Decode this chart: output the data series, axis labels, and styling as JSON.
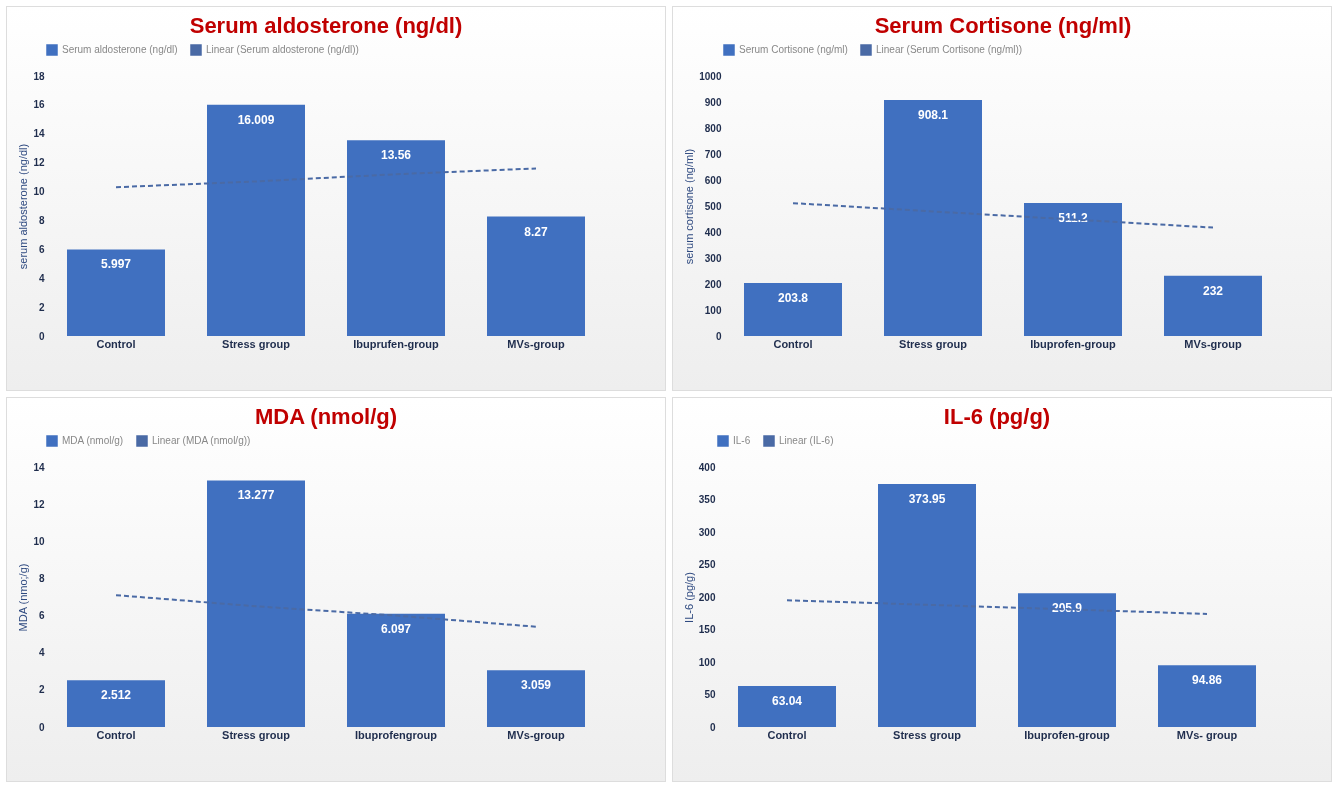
{
  "chart_data": [
    {
      "type": "bar",
      "title": "Serum aldosterone (ng/dl)",
      "ylabel": "serum aldosterone (ng/dl)",
      "categories": [
        "Control",
        "Stress group",
        "Ibuprufen-group",
        "MVs-group"
      ],
      "ylim": [
        0,
        18
      ],
      "yticks": [
        0,
        2,
        4,
        6,
        8,
        10,
        12,
        14,
        16,
        18
      ],
      "legend": "top",
      "series": [
        {
          "name": "Serum aldosterone (ng/dl)",
          "color": "#4070c0",
          "values": [
            5.997,
            16.009,
            13.56,
            8.27
          ],
          "value_labels": [
            "5.997",
            "16.009",
            "13.56",
            "8.27"
          ]
        },
        {
          "name": "Linear (Serum aldosterone (ng/dl))",
          "type": "line",
          "line_style": "dashed",
          "color": "#4a6aa5",
          "values": [
            10.3,
            10.7,
            11.2,
            11.6
          ]
        }
      ]
    },
    {
      "type": "bar",
      "title": "Serum Cortisone (ng/ml)",
      "ylabel": "serum cortisone (ng/ml)",
      "categories": [
        "Control",
        "Stress group",
        "Ibuprofen-group",
        "MVs-group"
      ],
      "ylim": [
        0,
        1000
      ],
      "yticks": [
        0,
        100,
        200,
        300,
        400,
        500,
        600,
        700,
        800,
        900,
        1000
      ],
      "legend": "top",
      "series": [
        {
          "name": "Serum Cortisone (ng/ml)",
          "color": "#4070c0",
          "values": [
            203.8,
            908.1,
            511.2,
            232
          ],
          "value_labels": [
            "203.8",
            "908.1",
            "511.2",
            "232"
          ]
        },
        {
          "name": "Linear (Serum Cortisone (ng/ml))",
          "type": "line",
          "line_style": "dashed",
          "color": "#4a6aa5",
          "values": [
            511,
            479,
            448,
            417
          ]
        }
      ]
    },
    {
      "type": "bar",
      "title": "MDA (nmol/g)",
      "ylabel": "MDA (nmo;/g)",
      "categories": [
        "Control",
        "Stress group",
        "Ibuprofengroup",
        "MVs-group"
      ],
      "ylim": [
        0,
        14
      ],
      "yticks": [
        0,
        2,
        4,
        6,
        8,
        10,
        12,
        14
      ],
      "legend": "top",
      "series": [
        {
          "name": "MDA (nmol/g)",
          "color": "#4070c0",
          "values": [
            2.512,
            13.277,
            6.097,
            3.059
          ],
          "value_labels": [
            "2.512",
            "13.277",
            "6.097",
            "3.059"
          ]
        },
        {
          "name": "Linear (MDA (nmol/g))",
          "type": "line",
          "line_style": "dashed",
          "color": "#4a6aa5",
          "values": [
            7.1,
            6.5,
            6.0,
            5.4
          ]
        }
      ]
    },
    {
      "type": "bar",
      "title": "IL-6 (pg/g)",
      "ylabel": "IL-6 (pg/g)",
      "categories": [
        "Control",
        "Stress group",
        "Ibuprofen-group",
        "MVs- group"
      ],
      "ylim": [
        0,
        400
      ],
      "yticks": [
        0,
        50,
        100,
        150,
        200,
        250,
        300,
        350,
        400
      ],
      "legend": "top",
      "series": [
        {
          "name": "IL-6",
          "color": "#4070c0",
          "values": [
            63.04,
            373.95,
            205.9,
            94.86
          ],
          "value_labels": [
            "63.04",
            "373.95",
            "205.9",
            "94.86"
          ]
        },
        {
          "name": "Linear (IL-6)",
          "type": "line",
          "line_style": "dashed",
          "color": "#4a6aa5",
          "values": [
            195,
            188,
            181,
            174
          ]
        }
      ]
    }
  ]
}
